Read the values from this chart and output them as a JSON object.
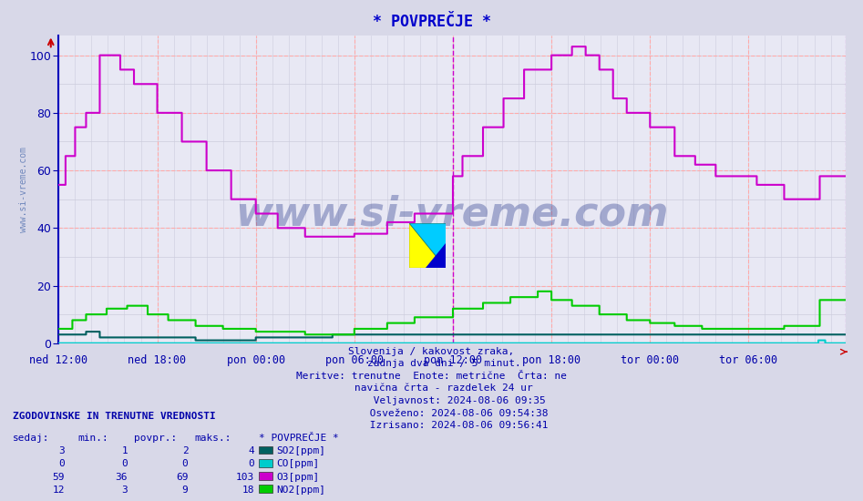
{
  "title": "* POVPREČJE *",
  "title_color": "#0000cc",
  "bg_color": "#d8d8e8",
  "plot_bg_color": "#e8e8f4",
  "ylim": [
    0,
    107
  ],
  "yticks": [
    0,
    20,
    40,
    60,
    80,
    100
  ],
  "xticklabels": [
    "ned 12:00",
    "ned 18:00",
    "pon 00:00",
    "pon 06:00",
    "pon 12:00",
    "pon 18:00",
    "tor 00:00",
    "tor 06:00"
  ],
  "line_colors": {
    "SO2": "#006060",
    "CO": "#00cccc",
    "O3": "#cc00cc",
    "NO2": "#00cc00"
  },
  "watermark": "www.si-vreme.com",
  "watermark_color": "#2244aa",
  "watermark_alpha": 0.35,
  "info_lines": [
    "Slovenija / kakovost zraka,",
    "    zadnja dva dni / 5 minut.",
    "Meritve: trenutne  Enote: metrične  Črta: ne",
    "    navična črta - razdelek 24 ur",
    "         Veljavnost: 2024-08-06 09:35",
    "         Osveženo: 2024-08-06 09:54:38",
    "         Izrisano: 2024-08-06 09:56:41"
  ],
  "legend_title": "ZGODOVINSKE IN TRENUTNE VREDNOSTI",
  "legend_headers": [
    "sedaj:",
    "min.:",
    "povpr.:",
    "maks.:",
    "* POVPREČJE *"
  ],
  "legend_rows": [
    {
      "vals": [
        3,
        1,
        2,
        4
      ],
      "label": "SO2[ppm]",
      "color": "#006060"
    },
    {
      "vals": [
        0,
        0,
        0,
        0
      ],
      "label": "CO[ppm]",
      "color": "#00cccc"
    },
    {
      "vals": [
        59,
        36,
        69,
        103
      ],
      "label": "O3[ppm]",
      "color": "#cc00cc"
    },
    {
      "vals": [
        12,
        3,
        9,
        18
      ],
      "label": "NO2[ppm]",
      "color": "#00cc00"
    }
  ],
  "n_points": 576,
  "vline_x": 288
}
